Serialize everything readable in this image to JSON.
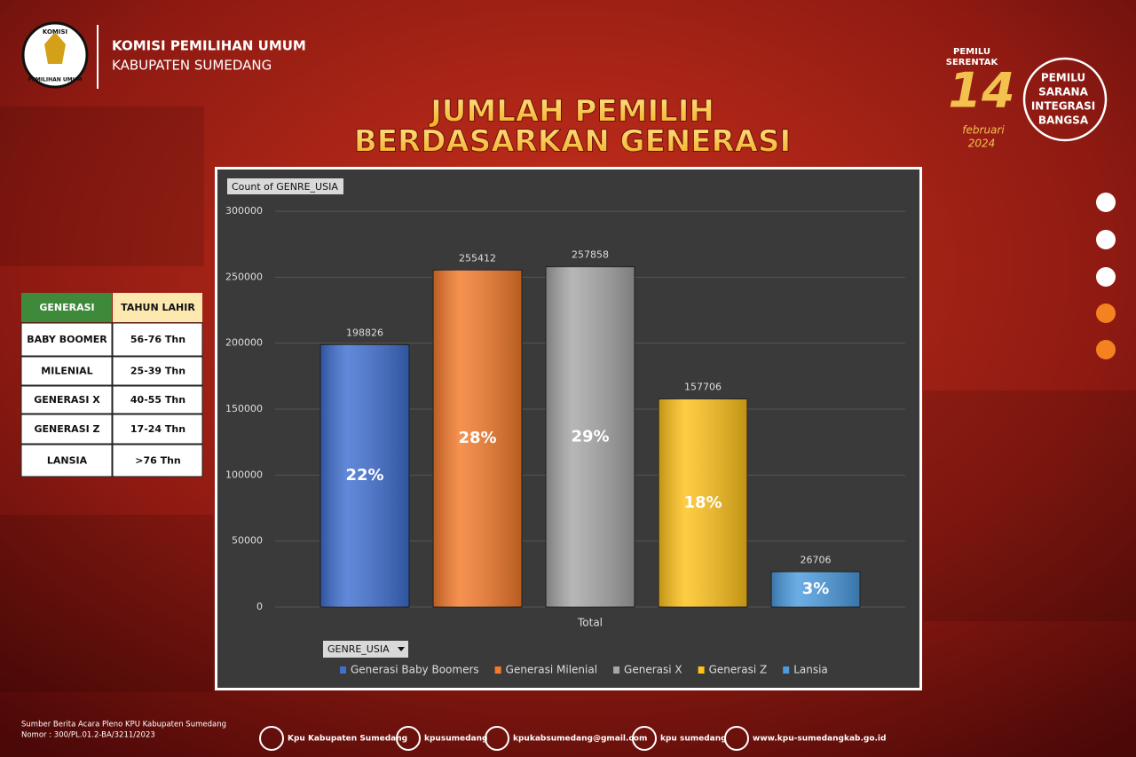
{
  "header": {
    "org_line1": "KOMISI PEMILIHAN UMUM",
    "org_line2": "KABUPATEN SUMEDANG",
    "logo_top": "KOMISI",
    "logo_bottom": "PEMILIHAN UMUM"
  },
  "badge": {
    "line1": "PEMILU",
    "line2": "SERENTAK",
    "day": "14",
    "month": "februari",
    "year": "2024"
  },
  "slogan": [
    "PEMILU",
    "SARANA",
    "INTEGRASI",
    "BANGSA"
  ],
  "title": [
    "JUMLAH PEMILIH",
    "BERDASARKAN GENERASI"
  ],
  "table": {
    "header": [
      "GENERASI",
      "TAHUN LAHIR"
    ],
    "rows": [
      [
        "BABY BOOMER",
        "56-76 Thn"
      ],
      [
        "MILENIAL",
        "25-39 Thn"
      ],
      [
        "GENERASI X",
        "40-55 Thn"
      ],
      [
        "GENERASI Z",
        "17-24 Thn"
      ],
      [
        "LANSIA",
        ">76 Thn"
      ]
    ]
  },
  "chart_data": {
    "type": "bar",
    "value_field_button": "Count of GENRE_USIA",
    "filter_button": "GENRE_USIA",
    "categories": [
      "Total"
    ],
    "series": [
      {
        "name": "Generasi Baby Boomers",
        "color": "#3f6fd1",
        "values": [
          198826
        ],
        "share_labels": [
          "22%"
        ]
      },
      {
        "name": "Generasi Milenial",
        "color": "#f47a2a",
        "values": [
          255412
        ],
        "share_labels": [
          "28%"
        ]
      },
      {
        "name": "Generasi X",
        "color": "#a6a6a6",
        "values": [
          257858
        ],
        "share_labels": [
          "29%"
        ]
      },
      {
        "name": "Generasi Z",
        "color": "#ffc21a",
        "values": [
          157706
        ],
        "share_labels": [
          "18%"
        ]
      },
      {
        "name": "Lansia",
        "color": "#4b9be0",
        "values": [
          26706
        ],
        "share_labels": [
          "3%"
        ]
      }
    ],
    "ylim": [
      0,
      300000
    ],
    "yticks": [
      0,
      50000,
      100000,
      150000,
      200000,
      250000,
      300000
    ],
    "grid": true
  },
  "footer": {
    "source": [
      "Sumber Berita Acara Pleno KPU Kabupaten Sumedang",
      "Nomor : 300/PL.01.2-BA/3211/2023"
    ],
    "links": [
      "Kpu Kabupaten Sumedang",
      "kpusumedang",
      "kpukabsumedang@gmail.com",
      "kpu sumedang",
      "www.kpu-sumedangkab.go.id"
    ]
  }
}
